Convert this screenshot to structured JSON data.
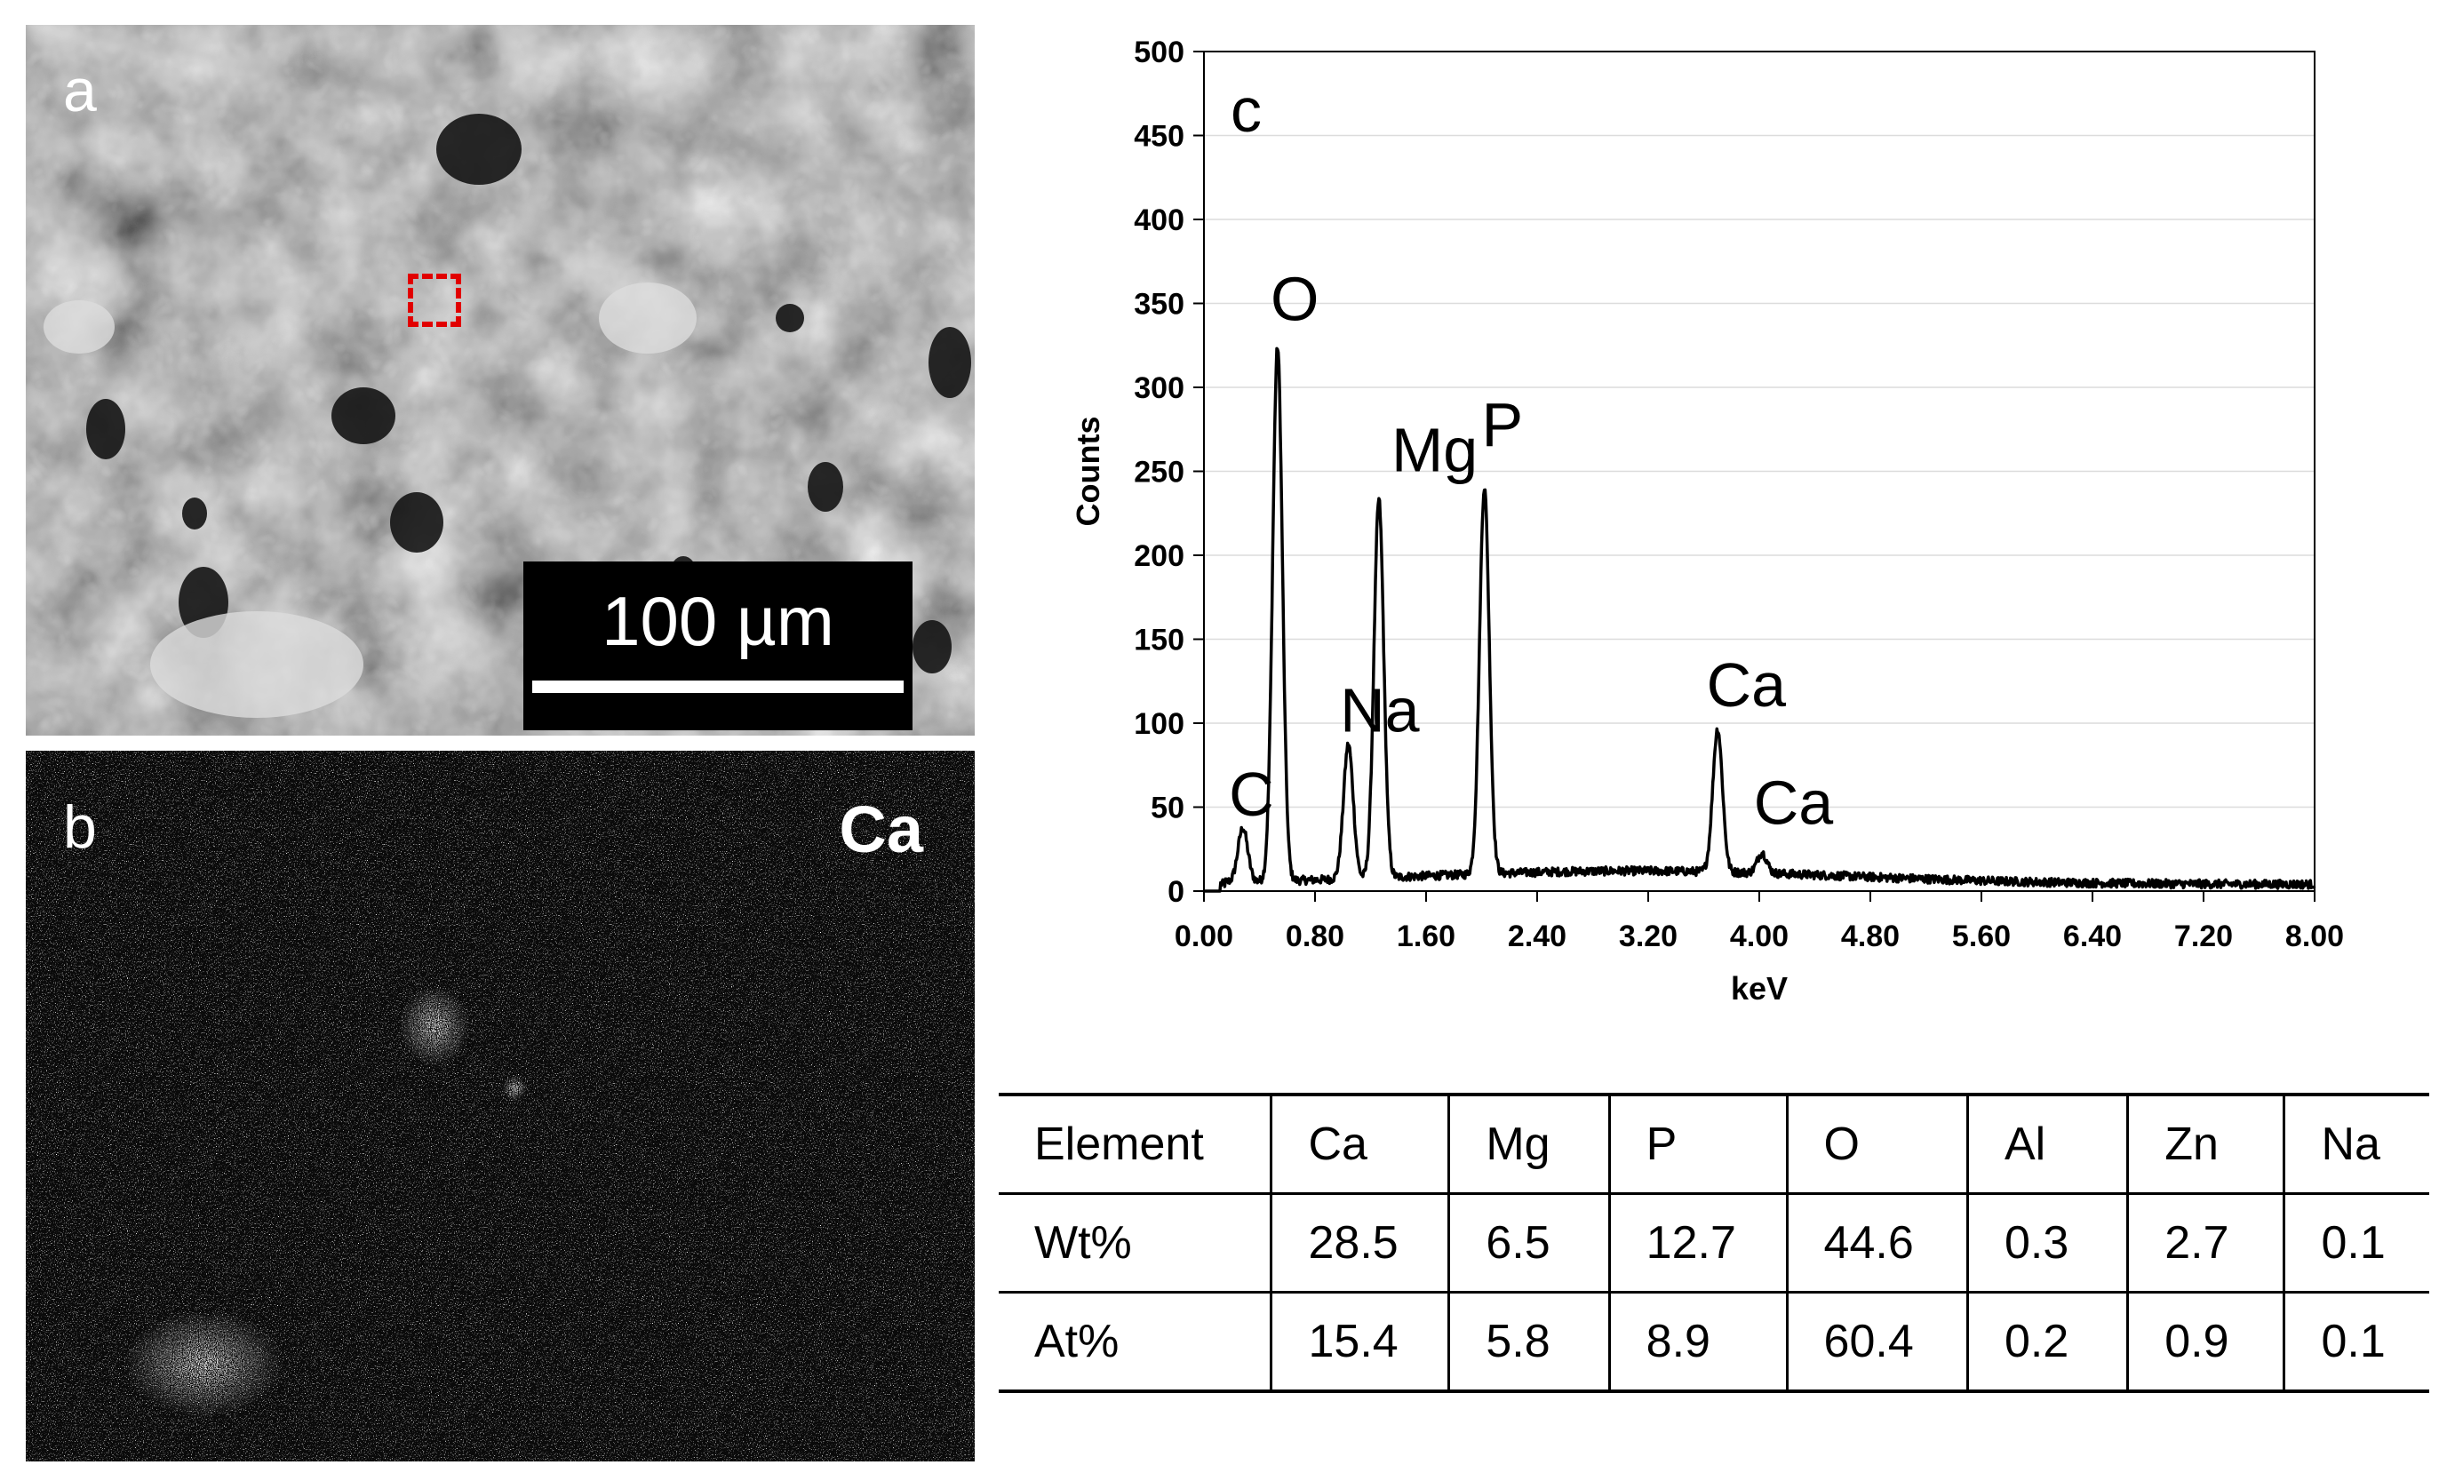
{
  "panels": {
    "a": {
      "letter": "a",
      "scale_bar_label": "100 µm"
    },
    "b": {
      "letter": "b",
      "element_label": "Ca"
    },
    "c": {
      "letter": "c"
    }
  },
  "colors": {
    "roi_box": "#e10000",
    "spectrum_line": "#000000"
  },
  "chart_data": {
    "type": "line",
    "xlabel": "keV",
    "ylabel": "Counts",
    "xlim": [
      0,
      8
    ],
    "ylim": [
      0,
      500
    ],
    "x_ticks": [
      "0.00",
      "0.80",
      "1.60",
      "2.40",
      "3.20",
      "4.00",
      "4.80",
      "5.60",
      "6.40",
      "7.20",
      "8.00"
    ],
    "y_ticks": [
      "0",
      "50",
      "100",
      "150",
      "200",
      "250",
      "300",
      "350",
      "400",
      "450",
      "500"
    ],
    "peaks": [
      {
        "label": "C",
        "x": 0.28,
        "y": 32
      },
      {
        "label": "O",
        "x": 0.53,
        "y": 318
      },
      {
        "label": "Na",
        "x": 1.04,
        "y": 80
      },
      {
        "label": "Mg",
        "x": 1.26,
        "y": 225
      },
      {
        "label": "P",
        "x": 2.02,
        "y": 230
      },
      {
        "label": "Ca",
        "x": 3.7,
        "y": 85
      },
      {
        "label": "Ca",
        "x": 4.02,
        "y": 12
      }
    ],
    "peak_labels": [
      {
        "text": "C",
        "x": 0.18,
        "y": 45
      },
      {
        "text": "O",
        "x": 0.48,
        "y": 340
      },
      {
        "text": "Na",
        "x": 0.98,
        "y": 95
      },
      {
        "text": "Mg",
        "x": 1.35,
        "y": 250
      },
      {
        "text": "P",
        "x": 2.0,
        "y": 265
      },
      {
        "text": "Ca",
        "x": 3.62,
        "y": 110
      },
      {
        "text": "Ca",
        "x": 3.96,
        "y": 40
      }
    ]
  },
  "table": {
    "header": [
      "Element",
      "Ca",
      "Mg",
      "P",
      "O",
      "Al",
      "Zn",
      "Na"
    ],
    "rows": [
      [
        "Wt%",
        "28.5",
        "6.5",
        "12.7",
        "44.6",
        "0.3",
        "2.7",
        "0.1"
      ],
      [
        "At%",
        "15.4",
        "5.8",
        "8.9",
        "60.4",
        "0.2",
        "0.9",
        "0.1"
      ]
    ]
  }
}
